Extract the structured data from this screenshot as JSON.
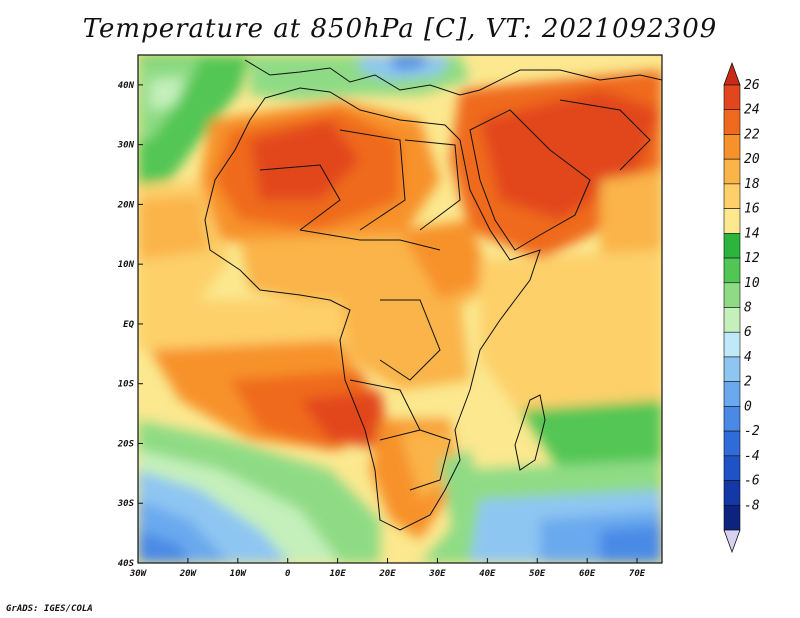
{
  "title": "Temperature at 850hPa [C], VT: 2021092309",
  "credit": "GrADS: IGES/COLA",
  "map": {
    "lon_range": [
      -30,
      75
    ],
    "lat_range": [
      -40,
      45
    ],
    "lat_ticks": [
      {
        "value": 40,
        "label": "40N"
      },
      {
        "value": 30,
        "label": "30N"
      },
      {
        "value": 20,
        "label": "20N"
      },
      {
        "value": 10,
        "label": "10N"
      },
      {
        "value": 0,
        "label": "EQ"
      },
      {
        "value": -10,
        "label": "10S"
      },
      {
        "value": -20,
        "label": "20S"
      },
      {
        "value": -30,
        "label": "30S"
      },
      {
        "value": -40,
        "label": "40S"
      }
    ],
    "lon_ticks": [
      {
        "value": -30,
        "label": "30W"
      },
      {
        "value": -20,
        "label": "20W"
      },
      {
        "value": -10,
        "label": "10W"
      },
      {
        "value": 0,
        "label": "0"
      },
      {
        "value": 10,
        "label": "10E"
      },
      {
        "value": 20,
        "label": "20E"
      },
      {
        "value": 30,
        "label": "30E"
      },
      {
        "value": 40,
        "label": "40E"
      },
      {
        "value": 50,
        "label": "50E"
      },
      {
        "value": 60,
        "label": "60E"
      },
      {
        "value": 70,
        "label": "70E"
      }
    ]
  },
  "colorbar": {
    "levels": [
      {
        "label": "26",
        "color": "#e2461d"
      },
      {
        "label": "24",
        "color": "#ef6a1f"
      },
      {
        "label": "22",
        "color": "#f7922a"
      },
      {
        "label": "20",
        "color": "#fab449"
      },
      {
        "label": "18",
        "color": "#fdd06a"
      },
      {
        "label": "16",
        "color": "#fbe88f"
      },
      {
        "label": "14",
        "color": "#2db43c"
      },
      {
        "label": "12",
        "color": "#52c655"
      },
      {
        "label": "10",
        "color": "#8fdb85"
      },
      {
        "label": "8",
        "color": "#c4f0bb"
      },
      {
        "label": "6",
        "color": "#bfe8f8"
      },
      {
        "label": "4",
        "color": "#8ec6f2"
      },
      {
        "label": "2",
        "color": "#6aa9ee"
      },
      {
        "label": "0",
        "color": "#4a8ae6"
      },
      {
        "label": "-2",
        "color": "#2f6cd9"
      },
      {
        "label": "-4",
        "color": "#1f52c5"
      },
      {
        "label": "-6",
        "color": "#1438a8"
      },
      {
        "label": "-8",
        "color": "#0c2480"
      }
    ],
    "top_color": "#cc2a16",
    "bottom_color": "#d8d2f2"
  }
}
